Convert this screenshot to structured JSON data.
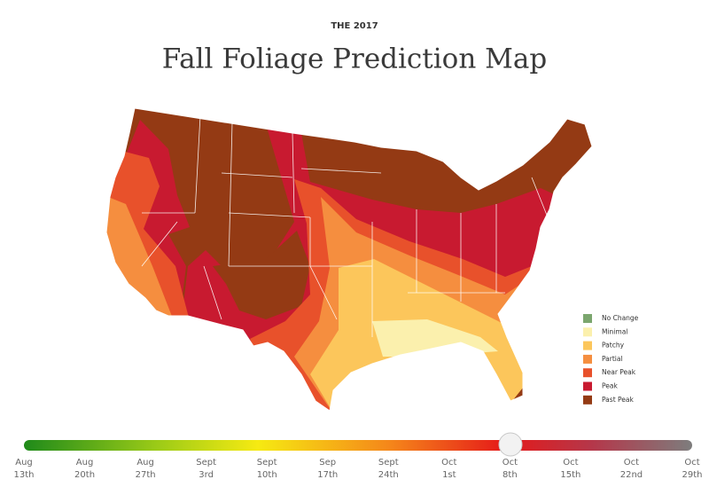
{
  "header": {
    "kicker": "THE 2017",
    "title": "Fall Foliage Prediction Map"
  },
  "legend": [
    {
      "label": "No Change",
      "color": "#7ba66e"
    },
    {
      "label": "Minimal",
      "color": "#fbf0ad"
    },
    {
      "label": "Patchy",
      "color": "#fcc65b"
    },
    {
      "label": "Partial",
      "color": "#f58e3f"
    },
    {
      "label": "Near Peak",
      "color": "#e8512b"
    },
    {
      "label": "Peak",
      "color": "#c81a30"
    },
    {
      "label": "Past Peak",
      "color": "#943a14"
    }
  ],
  "slider": {
    "labels": [
      {
        "month": "Aug",
        "day": "13th"
      },
      {
        "month": "Aug",
        "day": "20th"
      },
      {
        "month": "Aug",
        "day": "27th"
      },
      {
        "month": "Sept",
        "day": "3rd"
      },
      {
        "month": "Sept",
        "day": "10th"
      },
      {
        "month": "Sep",
        "day": "17th"
      },
      {
        "month": "Sept",
        "day": "24th"
      },
      {
        "month": "Oct",
        "day": "1st"
      },
      {
        "month": "Oct",
        "day": "8th"
      },
      {
        "month": "Oct",
        "day": "15th"
      },
      {
        "month": "Oct",
        "day": "22nd"
      },
      {
        "month": "Oct",
        "day": "29th"
      }
    ]
  }
}
